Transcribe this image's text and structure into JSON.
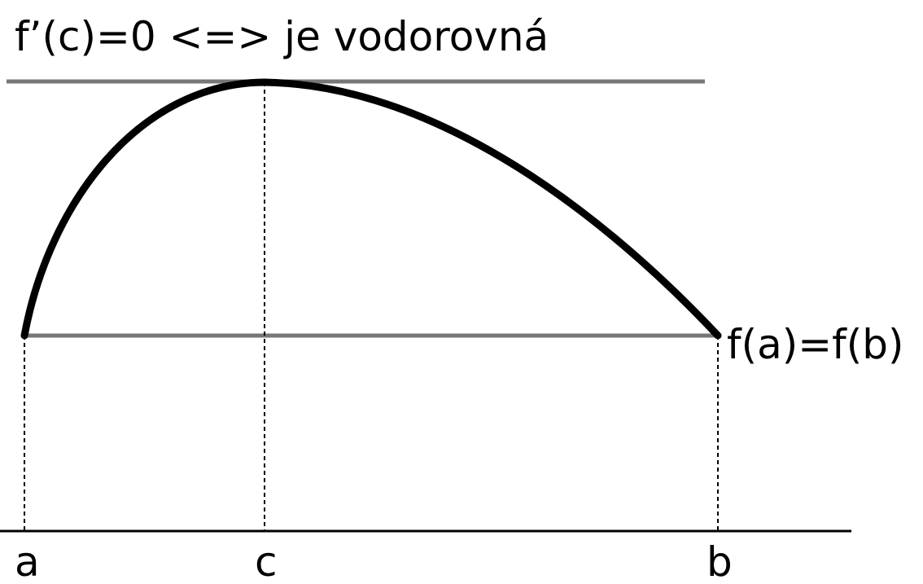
{
  "diagram": {
    "title": "f’(c)=0 <=> je vodorovná",
    "equal_values_label": "f(a)=f(b)",
    "x_labels": {
      "a": "a",
      "c": "c",
      "b": "b"
    }
  }
}
